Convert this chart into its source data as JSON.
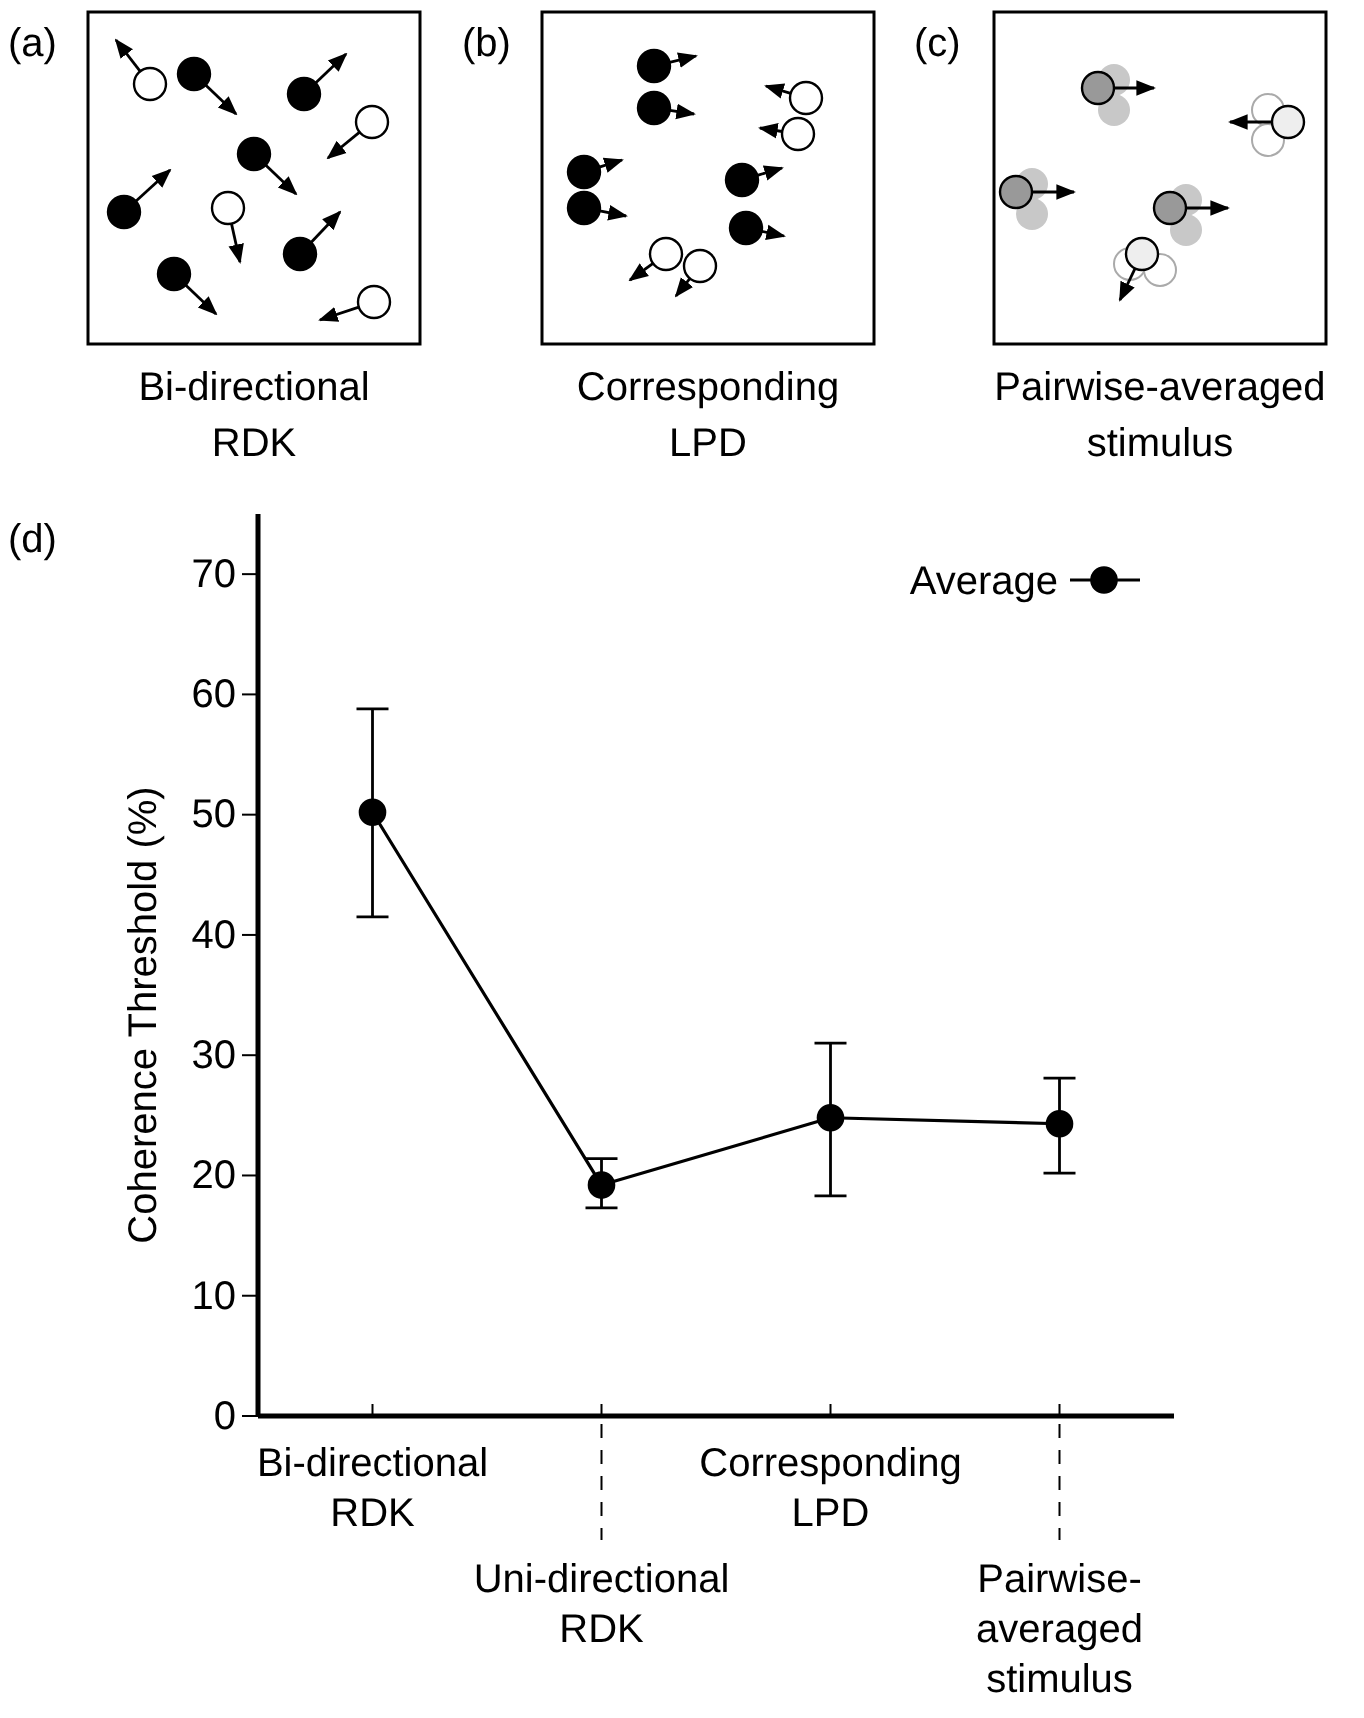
{
  "chart_data": {
    "type": "line",
    "ylabel": "Coherence Threshold (%)",
    "categories": [
      "Bi-directional\nRDK",
      "Uni-directional\nRDK",
      "Corresponding\nLPD",
      "Pairwise-\naveraged\nstimulus"
    ],
    "series": [
      {
        "name": "Average",
        "color": "#000000",
        "values": [
          50.2,
          19.2,
          24.8,
          24.3
        ],
        "errors": [
          [
            41.5,
            58.8
          ],
          [
            17.3,
            21.4
          ],
          [
            18.3,
            31.0
          ],
          [
            20.2,
            28.1
          ]
        ]
      }
    ],
    "ylim": [
      0,
      75
    ],
    "yticks": [
      0,
      10,
      20,
      30,
      40,
      50,
      60,
      70
    ],
    "marker": "circle",
    "line_style": "solid",
    "legend": "top right",
    "grid": false,
    "annotations": [
      "(a)",
      "Bi-directional\nRDK",
      "(b)",
      "Corresponding\nLPD",
      "(c)",
      "Pairwise-averaged\nstimulus",
      "(d)"
    ]
  }
}
